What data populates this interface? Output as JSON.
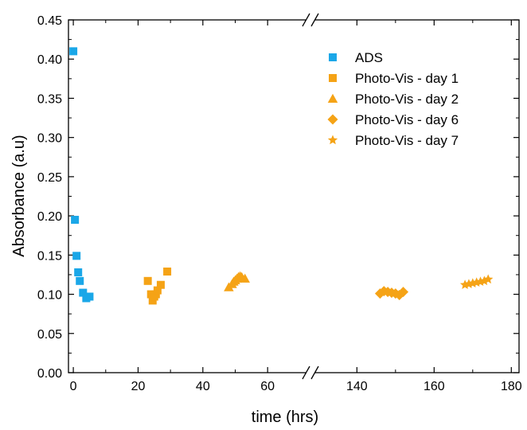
{
  "chart_data": {
    "type": "scatter",
    "xlabel": "time (hrs)",
    "ylabel": "Absorbance (a.u)",
    "ylim": [
      0,
      0.45
    ],
    "y_ticks": [
      "0.00",
      "0.05",
      "0.10",
      "0.15",
      "0.20",
      "0.25",
      "0.30",
      "0.35",
      "0.40",
      "0.45"
    ],
    "x_axis_broken": true,
    "x_segments": [
      {
        "range": [
          -1.5,
          72
        ],
        "ticks": [
          0,
          20,
          40,
          60
        ]
      },
      {
        "range": [
          129,
          182
        ],
        "ticks": [
          140,
          160,
          180
        ]
      }
    ],
    "x_tick_labels": [
      "0",
      "20",
      "40",
      "60",
      "140",
      "160",
      "180"
    ],
    "legend_position": "top-right",
    "series": [
      {
        "name": "ADS",
        "marker": "square",
        "color": "#1AA7E8",
        "points": [
          [
            0,
            0.41
          ],
          [
            0.5,
            0.195
          ],
          [
            1,
            0.149
          ],
          [
            1.5,
            0.128
          ],
          [
            2,
            0.117
          ],
          [
            3,
            0.102
          ],
          [
            4,
            0.095
          ],
          [
            5,
            0.097
          ]
        ]
      },
      {
        "name": "Photo-Vis - day 1",
        "marker": "square",
        "color": "#F5A316",
        "points": [
          [
            23,
            0.117
          ],
          [
            24,
            0.1
          ],
          [
            24.5,
            0.092
          ],
          [
            25,
            0.097
          ],
          [
            25.5,
            0.1
          ],
          [
            26,
            0.105
          ],
          [
            27,
            0.112
          ],
          [
            29,
            0.129
          ]
        ]
      },
      {
        "name": "Photo-Vis - day 2",
        "marker": "triangle",
        "color": "#F5A316",
        "points": [
          [
            48,
            0.109
          ],
          [
            49,
            0.113
          ],
          [
            49.5,
            0.116
          ],
          [
            50,
            0.118
          ],
          [
            50.5,
            0.12
          ],
          [
            51,
            0.122
          ],
          [
            51.5,
            0.123
          ],
          [
            52,
            0.122
          ],
          [
            53,
            0.12
          ]
        ]
      },
      {
        "name": "Photo-Vis - day 6",
        "marker": "diamond",
        "color": "#F5A316",
        "points": [
          [
            146,
            0.101
          ],
          [
            147,
            0.104
          ],
          [
            148,
            0.103
          ],
          [
            149,
            0.102
          ],
          [
            150,
            0.101
          ],
          [
            151,
            0.099
          ],
          [
            152,
            0.103
          ]
        ]
      },
      {
        "name": "Photo-Vis - day 7",
        "marker": "star",
        "color": "#F5A316",
        "points": [
          [
            168,
            0.112
          ],
          [
            169,
            0.113
          ],
          [
            170,
            0.114
          ],
          [
            171,
            0.115
          ],
          [
            172,
            0.116
          ],
          [
            173,
            0.117
          ],
          [
            174,
            0.119
          ]
        ]
      }
    ]
  }
}
